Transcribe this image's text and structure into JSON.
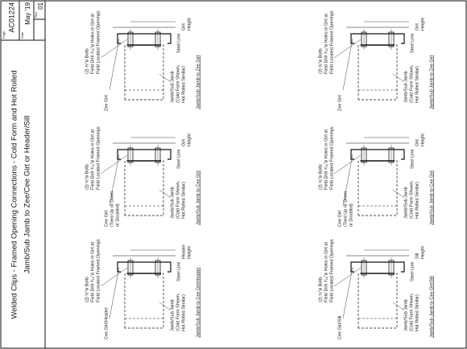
{
  "header": {
    "title_lines": [
      "Welded Clips - Framed Opening Connections - Cold Form and Hot Rolled",
      "Jamb/Sub Jamb to Zee/Cee Girt or Header/Sill"
    ],
    "page_label": "Page",
    "page": "AC01224",
    "date_label": "Date",
    "date": "May '19",
    "rev_label": "Rev",
    "rev": "01"
  },
  "details": [
    {
      "bolts": [
        "(2) ½\"ø Bolts",
        "Field Drill ⁹⁄₁₆\"ø Holes in Girt at",
        "Field Located Framed Openings"
      ],
      "girt": [
        "Zee Girt"
      ],
      "jamb": [
        "Jamb/Sub Jamb",
        "(Cold Form Shown,",
        "Hot Rolled Similar)"
      ],
      "steel_line": "Steel Line",
      "height": [
        "Girt",
        "Height"
      ],
      "caption": "Jamb/Sub Jamb to Zee Girt"
    },
    {
      "bolts": [
        "(2) ½\"ø Bolts",
        "Field Drill ⁹⁄₁₆\"ø Holes in Girt at",
        "Field Located Framed Openings"
      ],
      "girt": [
        "Cee Girt",
        "(Toed Up or Down",
        "or Doubled)"
      ],
      "jamb": [
        "Jamb/Sub Jamb",
        "(Cold Form Shown,",
        "Hot Rolled Similar)"
      ],
      "steel_line": "Steel Line",
      "height": [
        "Girt",
        "Height"
      ],
      "caption": "Jamb/Sub Jamb to Cee Girt"
    },
    {
      "bolts": [
        "(2) ½\"ø Bolts",
        "Field Drill ⁹⁄₁₆\"ø Holes in Girt at",
        "Field Located Framed Openings"
      ],
      "girt": [
        "Cee Girt/Header"
      ],
      "jamb": [
        "Jamb/Sub Jamb",
        "(Cold Form Shown,",
        "Hot Rolled Similar)"
      ],
      "steel_line": "Steel Line",
      "height": [
        "Header",
        "Height"
      ],
      "caption": "Jamb/Sub Jamb to Cee Girt/Header"
    },
    {
      "bolts": [
        "(2) ½\"ø Bolts",
        "Field Drill ⁹⁄₁₆\"ø Holes in Girt at",
        "Field Located Framed Openings"
      ],
      "girt": [
        "Zee Girt"
      ],
      "jamb": [
        "Jamb/Sub Jamb",
        "(Cold Form Shown,",
        "Hot Rolled Similar)"
      ],
      "steel_line": "Steel Line",
      "height": [
        "Girt",
        "Height"
      ],
      "caption": "Jamb/Sub Jamb to Zee Girt"
    },
    {
      "bolts": [
        "(2) ½\"ø Bolts",
        "Field Drill ⁹⁄₁₆\"ø Holes in Girt at",
        "Field Located Framed Openings"
      ],
      "girt": [
        "Cee Girt",
        "(Toed Up or Down",
        "or Doubled)"
      ],
      "jamb": [
        "Jamb/Sub Jamb",
        "(Cold Form Shown,",
        "Hot Rolled Similar)"
      ],
      "steel_line": "Steel Line",
      "height": [
        "Girt",
        "Height"
      ],
      "caption": "Jamb/Sub Jamb to Cee Girt"
    },
    {
      "bolts": [
        "(2) ½\"ø Bolts",
        "Field Drill ⁹⁄₁₆\"ø Holes in Girt at",
        "Field Located Framed Openings"
      ],
      "girt": [
        "Cee Girt/Sill"
      ],
      "jamb": [
        "Jamb/Sub Jamb",
        "(Cold Form Shown,",
        "Hot Rolled Similar)"
      ],
      "steel_line": "Steel Line",
      "height": [
        "Sill",
        "Height"
      ],
      "caption": "Jamb/Sub Jamb to Cee Girt/Sill"
    }
  ]
}
